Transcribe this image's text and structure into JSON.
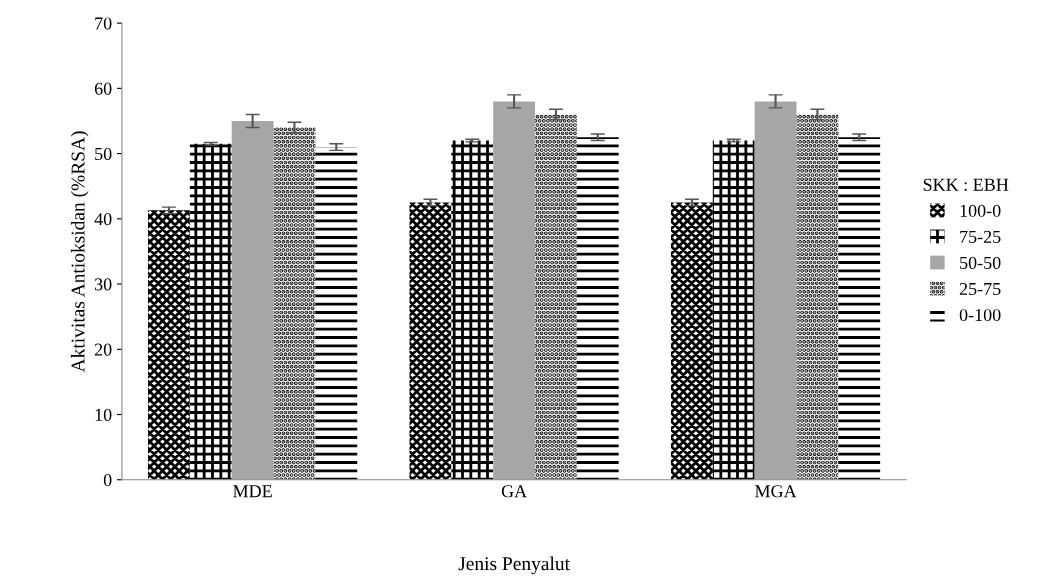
{
  "chart_data": {
    "type": "bar",
    "xlabel": "Jenis Penyalut",
    "ylabel": "Aktivitas Antioksidan (%RSA)",
    "legend_title": "SKK : EBH",
    "categories": [
      "MDE",
      "GA",
      "MGA"
    ],
    "series": [
      {
        "name": "100-0",
        "color": "#000000",
        "values": [
          41.3,
          42.5,
          42.5
        ],
        "errors": [
          0.5,
          0.5,
          0.5
        ]
      },
      {
        "name": "75-25",
        "color": "#000000",
        "values": [
          51.5,
          52,
          52
        ],
        "errors": [
          0.2,
          0.2,
          0.2
        ]
      },
      {
        "name": "50-50",
        "color": "#a6a6a6",
        "values": [
          55,
          58,
          58
        ],
        "errors": [
          1,
          1,
          1
        ]
      },
      {
        "name": "25-75",
        "color": "#000000",
        "values": [
          54,
          56,
          56
        ],
        "errors": [
          0.8,
          0.8,
          0.8
        ]
      },
      {
        "name": "0-100",
        "color": "#000000",
        "values": [
          51,
          52.5,
          52.5
        ],
        "errors": [
          0.5,
          0.5,
          0.5
        ]
      }
    ],
    "ylim": [
      0,
      70
    ],
    "yticks": [
      0,
      10,
      20,
      30,
      40,
      50,
      60,
      70
    ],
    "grid": false,
    "legend": "right"
  }
}
